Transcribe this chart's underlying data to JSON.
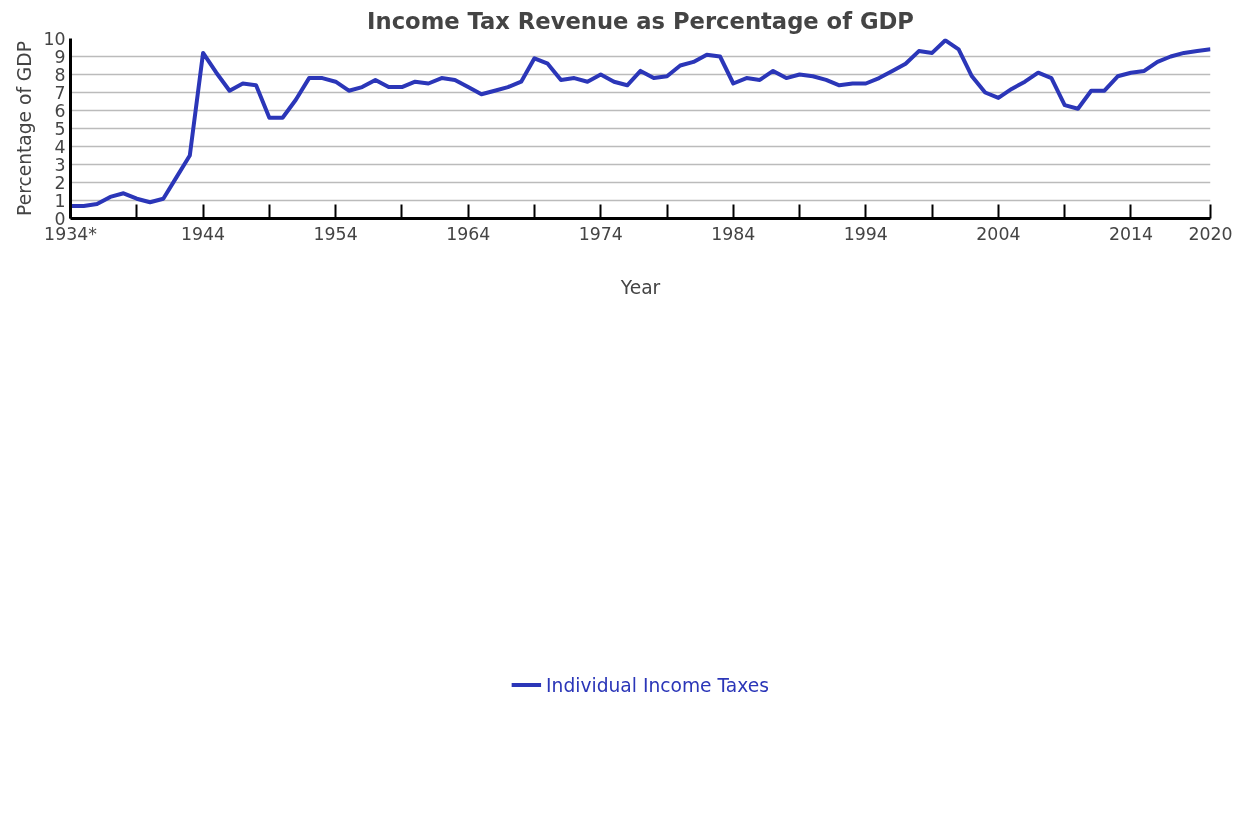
{
  "chart_data": {
    "type": "line",
    "title": "Income Tax Revenue as Percentage of GDP",
    "xlabel": "Year",
    "ylabel": "Percentage of GDP",
    "x": [
      1934,
      1935,
      1936,
      1937,
      1938,
      1939,
      1940,
      1941,
      1942,
      1943,
      1944,
      1945,
      1946,
      1947,
      1948,
      1949,
      1950,
      1951,
      1952,
      1953,
      1954,
      1955,
      1956,
      1957,
      1958,
      1959,
      1960,
      1961,
      1962,
      1963,
      1964,
      1965,
      1966,
      1967,
      1968,
      1969,
      1970,
      1971,
      1972,
      1973,
      1974,
      1975,
      1976,
      1977,
      1978,
      1979,
      1980,
      1981,
      1982,
      1983,
      1984,
      1985,
      1986,
      1987,
      1988,
      1989,
      1990,
      1991,
      1992,
      1993,
      1994,
      1995,
      1996,
      1997,
      1998,
      1999,
      2000,
      2001,
      2002,
      2003,
      2004,
      2005,
      2006,
      2007,
      2008,
      2009,
      2010,
      2011,
      2012,
      2013,
      2014,
      2015,
      2016,
      2017,
      2018,
      2019,
      2020
    ],
    "series": [
      {
        "name": "Individual Income Taxes",
        "color": "#2b36b8",
        "values": [
          0.7,
          0.7,
          0.8,
          1.2,
          1.4,
          1.1,
          0.9,
          1.1,
          2.3,
          3.5,
          9.2,
          8.1,
          7.1,
          7.5,
          7.4,
          5.6,
          5.6,
          6.6,
          7.8,
          7.8,
          7.6,
          7.1,
          7.3,
          7.7,
          7.3,
          7.3,
          7.6,
          7.5,
          7.8,
          7.7,
          7.3,
          6.9,
          7.1,
          7.3,
          7.6,
          8.9,
          8.6,
          7.7,
          7.8,
          7.6,
          8.0,
          7.6,
          7.4,
          8.2,
          7.8,
          7.9,
          8.5,
          8.7,
          9.1,
          9.0,
          7.5,
          7.8,
          7.7,
          8.2,
          7.8,
          8.0,
          7.9,
          7.7,
          7.4,
          7.5,
          7.5,
          7.8,
          8.2,
          8.6,
          9.3,
          9.2,
          9.9,
          9.4,
          7.9,
          7.0,
          6.7,
          7.2,
          7.6,
          8.1,
          7.8,
          6.3,
          6.1,
          7.1,
          7.1,
          7.9,
          8.1,
          8.2,
          8.7,
          9.0,
          9.2,
          9.3,
          9.4
        ]
      }
    ],
    "xlim": [
      1934,
      2020
    ],
    "xticks": [
      {
        "value": 1934,
        "label": "1934*"
      },
      {
        "value": 1939,
        "label": null
      },
      1944,
      {
        "value": 1949,
        "label": null
      },
      1954,
      {
        "value": 1959,
        "label": null
      },
      1964,
      {
        "value": 1969,
        "label": null
      },
      1974,
      {
        "value": 1979,
        "label": null
      },
      1984,
      {
        "value": 1989,
        "label": null
      },
      1994,
      {
        "value": 1999,
        "label": null
      },
      2004,
      {
        "value": 2009,
        "label": null
      },
      2014,
      2020
    ],
    "ylim": [
      0,
      10
    ],
    "yticks": [
      0,
      1,
      2,
      3,
      4,
      5,
      6,
      7,
      8,
      9,
      10
    ],
    "grid": "y",
    "legend": "bottom",
    "marker": "none",
    "line_style": "solid"
  }
}
